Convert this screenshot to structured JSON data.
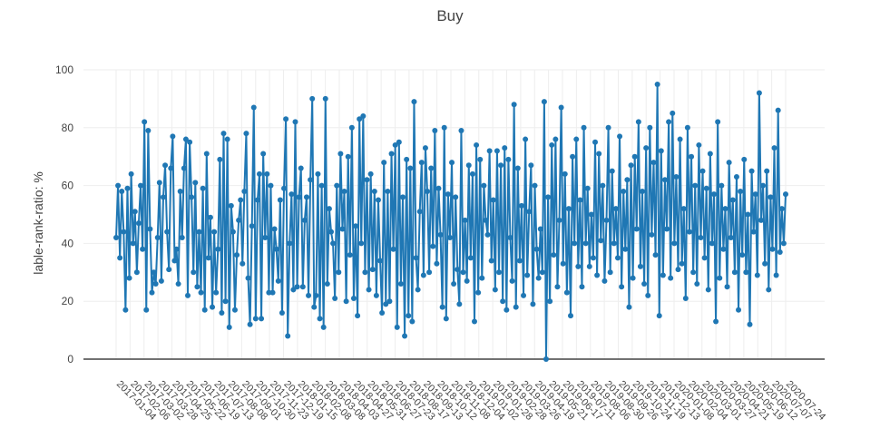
{
  "chart_data": {
    "type": "line",
    "title": "Buy",
    "xlabel": "",
    "ylabel": "lable-rank-ratio: %",
    "ylim": [
      0,
      100
    ],
    "yticks": [
      0,
      20,
      40,
      60,
      80,
      100
    ],
    "grid": true,
    "legend": "none",
    "colors": {
      "series": "#1f77b4",
      "grid": "#eeeeee",
      "zeroline": "#444444"
    },
    "x_start": "2017-01-04",
    "x_end": "2020-07-24",
    "x_tick_labels": [
      "2017-01-04",
      "2017-02-06",
      "2017-03-02",
      "2017-03-28",
      "2017-04-25",
      "2017-05-22",
      "2017-06-19",
      "2017-07-13",
      "2017-08-08",
      "2017-09-01",
      "2017-10-30",
      "2017-11-23",
      "2017-12-19",
      "2018-01-15",
      "2018-02-08",
      "2018-03-08",
      "2018-04-03",
      "2018-04-27",
      "2018-05-31",
      "2018-06-27",
      "2018-07-23",
      "2018-08-17",
      "2018-09-13",
      "2018-10-12",
      "2018-11-08",
      "2018-12-04",
      "2019-01-02",
      "2019-01-28",
      "2019-02-28",
      "2019-03-26",
      "2019-04-19",
      "2019-05-21",
      "2019-06-17",
      "2019-07-11",
      "2019-08-06",
      "2019-08-30",
      "2019-09-26",
      "2019-10-24",
      "2019-11-19",
      "2019-12-13",
      "2020-01-08",
      "2020-02-04",
      "2020-03-01",
      "2020-03-27",
      "2020-04-21",
      "2020-05-19",
      "2020-06-12",
      "2020-07-07",
      "2020-07-24"
    ],
    "series": [
      {
        "values": [
          42,
          60,
          35,
          58,
          44,
          17,
          59,
          28,
          64,
          40,
          51,
          30,
          47,
          60,
          38,
          82,
          17,
          79,
          45,
          23,
          30,
          26,
          42,
          61,
          27,
          56,
          67,
          44,
          31,
          66,
          77,
          34,
          38,
          26,
          58,
          42,
          66,
          76,
          22,
          75,
          56,
          30,
          61,
          25,
          44,
          23,
          59,
          17,
          71,
          35,
          49,
          18,
          44,
          23,
          38,
          69,
          16,
          78,
          20,
          76,
          11,
          53,
          44,
          17,
          36,
          48,
          55,
          33,
          58,
          78,
          28,
          12,
          46,
          87,
          14,
          55,
          64,
          14,
          71,
          42,
          64,
          23,
          60,
          23,
          45,
          38,
          27,
          55,
          16,
          59,
          83,
          8,
          40,
          57,
          24,
          82,
          25,
          56,
          66,
          25,
          48,
          56,
          22,
          62,
          90,
          18,
          22,
          64,
          14,
          60,
          11,
          90,
          26,
          52,
          44,
          40,
          21,
          60,
          30,
          71,
          45,
          58,
          20,
          70,
          36,
          80,
          21,
          46,
          15,
          83,
          40,
          84,
          30,
          62,
          24,
          64,
          31,
          58,
          22,
          55,
          34,
          16,
          68,
          19,
          58,
          20,
          71,
          38,
          74,
          11,
          75,
          26,
          56,
          8,
          69,
          15,
          66,
          13,
          89,
          35,
          24,
          51,
          68,
          29,
          73,
          58,
          30,
          66,
          39,
          79,
          33,
          59,
          43,
          18,
          80,
          14,
          57,
          42,
          68,
          26,
          56,
          31,
          19,
          79,
          30,
          48,
          27,
          67,
          35,
          64,
          13,
          74,
          23,
          69,
          28,
          60,
          48,
          43,
          72,
          34,
          55,
          24,
          72,
          30,
          67,
          20,
          73,
          17,
          69,
          42,
          27,
          88,
          18,
          66,
          34,
          53,
          22,
          76,
          29,
          51,
          67,
          19,
          60,
          38,
          28,
          45,
          30,
          89,
          0,
          56,
          20,
          74,
          36,
          76,
          25,
          48,
          87,
          33,
          64,
          23,
          52,
          15,
          70,
          40,
          76,
          32,
          55,
          25,
          80,
          40,
          59,
          32,
          50,
          35,
          75,
          29,
          71,
          41,
          60,
          27,
          48,
          80,
          30,
          65,
          40,
          52,
          35,
          77,
          25,
          58,
          38,
          62,
          18,
          67,
          28,
          70,
          45,
          82,
          32,
          58,
          26,
          73,
          22,
          80,
          43,
          68,
          36,
          95,
          15,
          72,
          29,
          62,
          45,
          82,
          28,
          85,
          40,
          63,
          31,
          76,
          33,
          52,
          21,
          80,
          44,
          70,
          30,
          60,
          26,
          74,
          42,
          65,
          35,
          59,
          24,
          71,
          40,
          57,
          13,
          82,
          28,
          60,
          38,
          52,
          25,
          68,
          42,
          55,
          30,
          63,
          17,
          58,
          36,
          69,
          30,
          50,
          12,
          65,
          44,
          57,
          29,
          92,
          48,
          60,
          33,
          65,
          24,
          56,
          38,
          73,
          29,
          86,
          37,
          52,
          40,
          57
        ]
      }
    ]
  }
}
